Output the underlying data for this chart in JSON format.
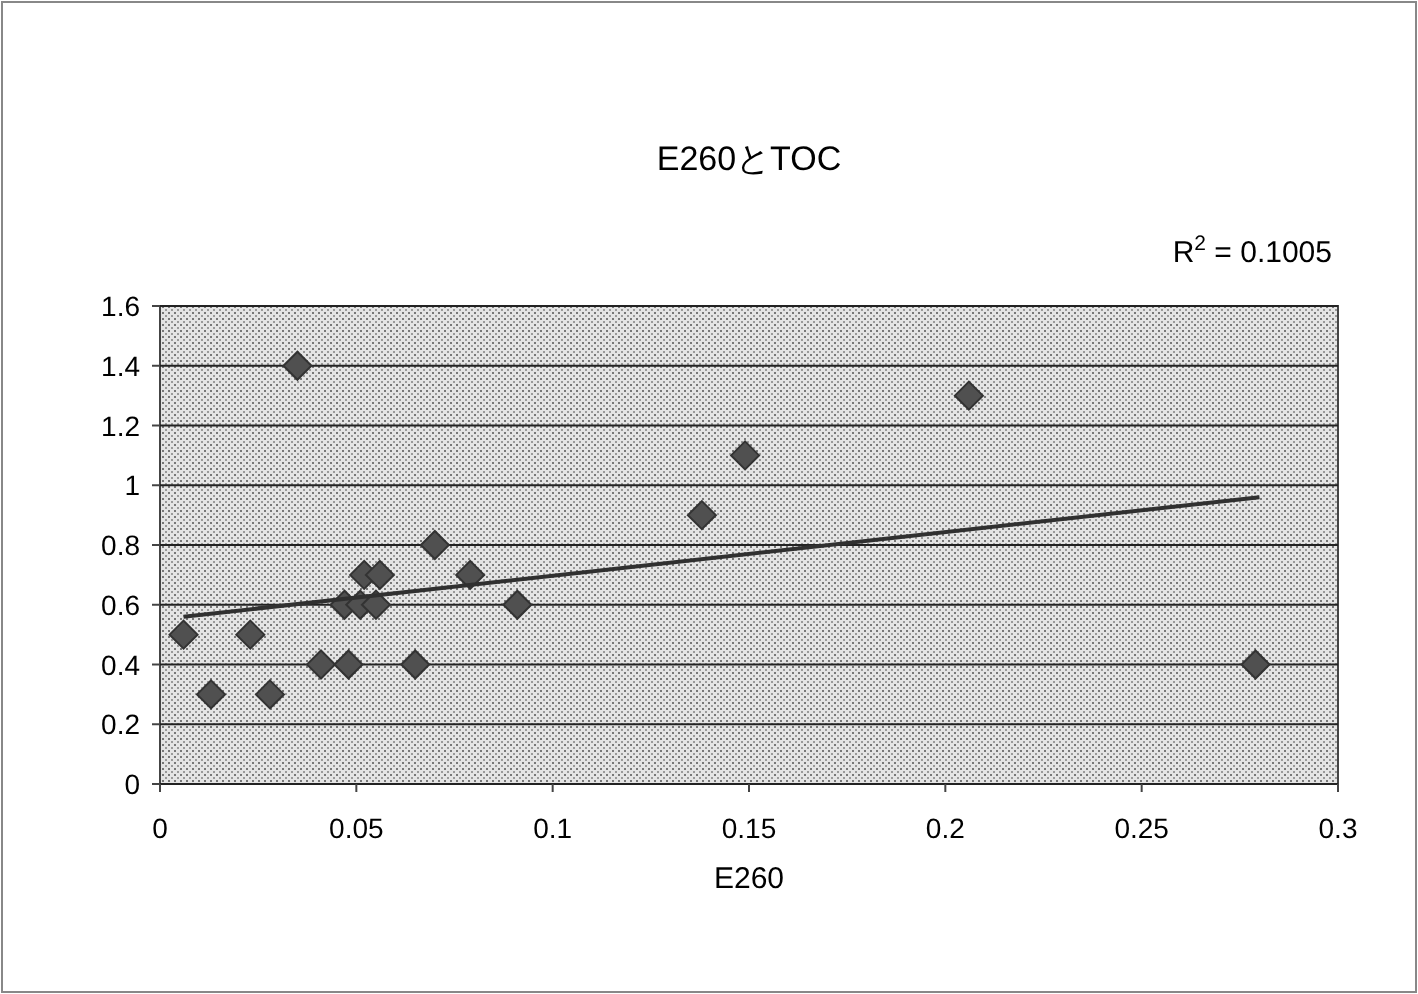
{
  "chart_data": {
    "type": "scatter",
    "title": "E260とTOC",
    "xlabel": "E260",
    "xlim": [
      0,
      0.3
    ],
    "xticks": [
      0,
      0.05,
      0.1,
      0.15,
      0.2,
      0.25,
      0.3
    ],
    "ylim": [
      0,
      1.6
    ],
    "yticks": [
      0,
      0.2,
      0.4,
      0.6,
      0.8,
      1,
      1.2,
      1.4,
      1.6
    ],
    "grid": "y",
    "series": [
      {
        "marker": "diamond",
        "color": "#505050",
        "x": [
          0.006,
          0.013,
          0.023,
          0.028,
          0.035,
          0.041,
          0.048,
          0.047,
          0.051,
          0.052,
          0.056,
          0.055,
          0.065,
          0.07,
          0.079,
          0.091,
          0.138,
          0.149,
          0.206,
          0.279
        ],
        "values": [
          0.5,
          0.3,
          0.5,
          0.3,
          1.4,
          0.4,
          0.4,
          0.6,
          0.6,
          0.7,
          0.7,
          0.6,
          0.4,
          0.8,
          0.7,
          0.6,
          0.9,
          1.1,
          1.3,
          0.4
        ]
      },
      {
        "type": "line",
        "color": "#303030",
        "x": [
          0.006,
          0.28
        ],
        "values": [
          0.56,
          0.96
        ]
      }
    ],
    "annotations": [
      "R$^{2}$ = 0.1005"
    ]
  }
}
